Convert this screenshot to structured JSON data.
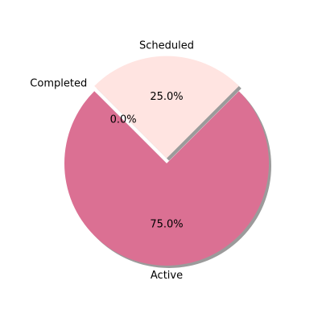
{
  "chart_data": {
    "type": "pie",
    "title": "",
    "slices": [
      {
        "label": "Active",
        "value": 75.0,
        "pct_label": "75.0%",
        "color": "#db7093"
      },
      {
        "label": "Scheduled",
        "value": 25.0,
        "pct_label": "25.0%",
        "color": "#ffe4e1"
      },
      {
        "label": "Completed",
        "value": 0.0,
        "pct_label": "0.0%",
        "color": "#ffc0cb"
      }
    ],
    "legend": "none",
    "shadow": true,
    "explode": "Scheduled"
  }
}
